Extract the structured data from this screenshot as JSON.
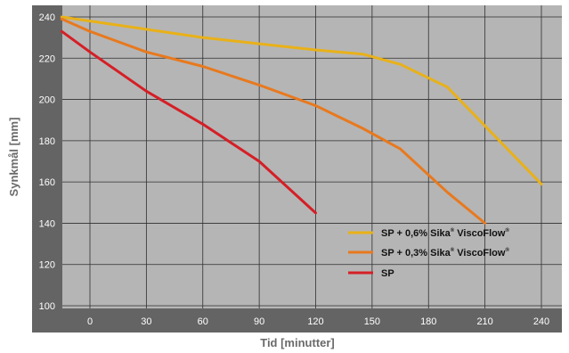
{
  "chart_data": {
    "type": "line",
    "xlabel": "Tid [minutter]",
    "ylabel": "Synkmål  [mm]",
    "x_ticks": [
      "0",
      "30",
      "60",
      "90",
      "120",
      "150",
      "180",
      "210",
      "240"
    ],
    "y_ticks": [
      "100",
      "120",
      "140",
      "160",
      "180",
      "200",
      "220",
      "240"
    ],
    "xlim": [
      -15,
      255
    ],
    "ylim": [
      100,
      245
    ],
    "grid": true,
    "legend_position": "lower-right",
    "colors": {
      "plot_background": "#b5b5b5",
      "axis_band": "#646464",
      "grid": "#2f2f2f"
    },
    "series": [
      {
        "name": "SP + 0,6% Sika",
        "name_sup": "®",
        "name_tail": " ViscoFlow",
        "name_tail_sup": "®",
        "color": "#e9b118",
        "points": [
          [
            -15,
            240
          ],
          [
            0,
            238
          ],
          [
            30,
            234
          ],
          [
            60,
            230
          ],
          [
            90,
            227
          ],
          [
            120,
            224
          ],
          [
            145,
            222
          ],
          [
            165,
            217
          ],
          [
            190,
            206
          ],
          [
            240,
            159
          ]
        ]
      },
      {
        "name": "SP + 0,3% Sika",
        "name_sup": "®",
        "name_tail": " ViscoFlow",
        "name_tail_sup": "®",
        "color": "#e8791e",
        "points": [
          [
            -15,
            239
          ],
          [
            0,
            233
          ],
          [
            30,
            223
          ],
          [
            60,
            216
          ],
          [
            90,
            207
          ],
          [
            120,
            197
          ],
          [
            145,
            186
          ],
          [
            165,
            176
          ],
          [
            190,
            155
          ],
          [
            210,
            140
          ]
        ]
      },
      {
        "name": "SP",
        "name_sup": "",
        "name_tail": "",
        "name_tail_sup": "",
        "color": "#d51f26",
        "points": [
          [
            -15,
            233
          ],
          [
            0,
            223
          ],
          [
            30,
            204
          ],
          [
            60,
            188
          ],
          [
            90,
            170
          ],
          [
            120,
            145
          ]
        ]
      }
    ]
  }
}
